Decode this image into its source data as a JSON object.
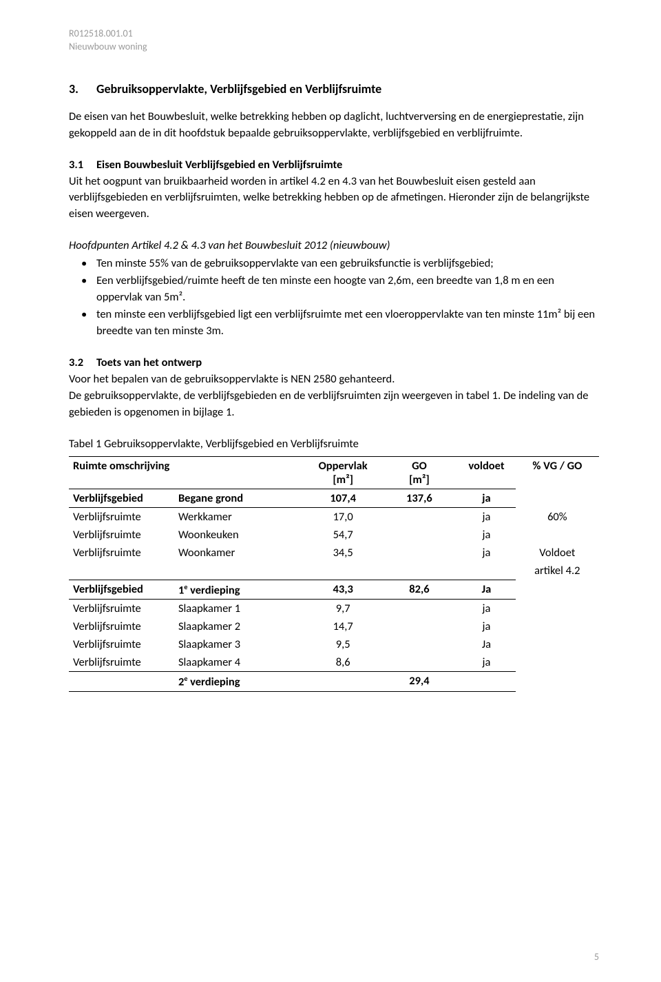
{
  "header": {
    "line1": "R012518.001.01",
    "line2": "Nieuwbouw woning"
  },
  "section3": {
    "num": "3.",
    "title": "Gebruiksoppervlakte, Verblijfsgebied en Verblijfsruimte",
    "intro": "De eisen van het Bouwbesluit, welke betrekking hebben op daglicht, luchtverversing en de energieprestatie, zijn gekoppeld aan de in dit hoofdstuk bepaalde gebruiksoppervlakte, verblijfsgebied en verblijfruimte.",
    "s1": {
      "num": "3.1",
      "title": "Eisen Bouwbesluit Verblijfsgebied en Verblijfsruimte",
      "p1": "Uit het oogpunt van bruikbaarheid worden in artikel 4.2 en 4.3 van het Bouwbesluit eisen gesteld aan verblijfsgebieden en verblijfsruimten, welke betrekking hebben op de afmetingen. Hieronder zijn de belangrijkste eisen weergeven.",
      "hp_title": "Hoofdpunten Artikel 4.2 & 4.3 van het Bouwbesluit 2012 (nieuwbouw)",
      "bullets": [
        "Ten minste 55% van de gebruiksoppervlakte van een gebruiksfunctie is verblijfsgebied;",
        "Een verblijfsgebied/ruimte heeft de ten minste een hoogte van 2,6m, een breedte van 1,8 m en een oppervlak van 5m².",
        "ten minste een verblijfsgebied ligt een verblijfsruimte met een vloeroppervlakte van ten minste 11m² bij een breedte van ten minste 3m."
      ]
    },
    "s2": {
      "num": "3.2",
      "title": "Toets van het ontwerp",
      "p1": "Voor het bepalen van de gebruiksoppervlakte is NEN 2580 gehanteerd.",
      "p2": "De gebruiksoppervlakte, de verblijfsgebieden en de verblijfsruimten zijn weergeven in tabel 1. De indeling van de gebieden is opgenomen in bijlage 1."
    }
  },
  "table": {
    "title": "Tabel 1 Gebruiksoppervlakte, Verblijfsgebied en Verblijfsruimte",
    "headers": {
      "c1": "Ruimte omschrijving",
      "c3a": "Oppervlak",
      "c3b": "[m²]",
      "c4a": "GO",
      "c4b": "[m²]",
      "c5": "voldoet",
      "c6": "% VG / GO"
    },
    "rows": [
      {
        "c1": "Verblijfsgebied",
        "c2": "Begane grond",
        "c3": "107,4",
        "c4": "137,6",
        "c5": "ja",
        "bold": true,
        "bt": true,
        "bb": true
      },
      {
        "c1": "Verblijfsruimte",
        "c2": "Werkkamer",
        "c3": "17,0",
        "c5": "ja",
        "c6": "60%"
      },
      {
        "c1": "Verblijfsruimte",
        "c2": "Woonkeuken",
        "c3": "54,7",
        "c5": "ja"
      },
      {
        "c1": "Verblijfsruimte",
        "c2": "Woonkamer",
        "c3": "34,5",
        "c5": "ja",
        "c6": "Voldoet"
      },
      {
        "bb": true,
        "c6": "artikel 4.2"
      },
      {
        "c1": "Verblijfsgebied",
        "c2": "1e verdieping",
        "c2sup": true,
        "c3": "43,3",
        "c4": "82,6",
        "c5": "Ja",
        "bold": true,
        "bb": true
      },
      {
        "c1": "Verblijfsruimte",
        "c2": "Slaapkamer 1",
        "c3": "9,7",
        "c5": "ja"
      },
      {
        "c1": "Verblijfsruimte",
        "c2": "Slaapkamer 2",
        "c3": "14,7",
        "c5": "ja"
      },
      {
        "c1": "Verblijfsruimte",
        "c2": "Slaapkamer 3",
        "c3": "9,5",
        "c5": "Ja"
      },
      {
        "c1": "Verblijfsruimte",
        "c2": "Slaapkamer 4",
        "c3": "8,6",
        "c5": "ja",
        "bb": true
      },
      {
        "c2": "2e verdieping",
        "c2sup": true,
        "c4": "29,4",
        "bold": true,
        "bb": true
      }
    ]
  },
  "pageNumber": "5"
}
